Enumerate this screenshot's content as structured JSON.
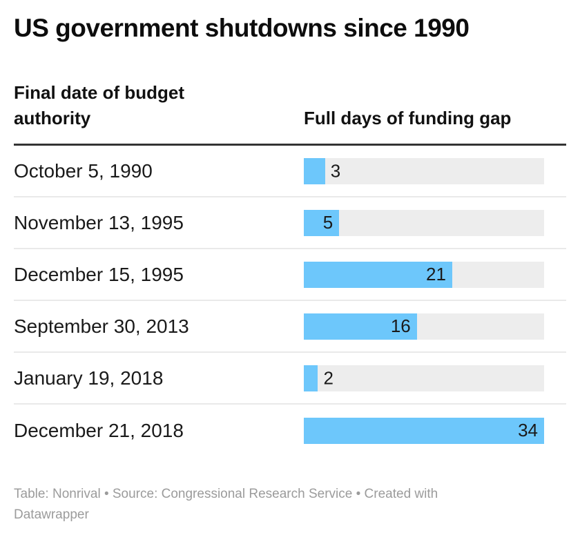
{
  "title": "US government shutdowns since 1990",
  "table": {
    "col1_header": "Final date of budget authority",
    "col2_header": "Full days of funding gap",
    "bar_max": 34,
    "rows": [
      {
        "date": "October 5, 1990",
        "days": 3
      },
      {
        "date": "November 13, 1995",
        "days": 5
      },
      {
        "date": "December 15, 1995",
        "days": 21
      },
      {
        "date": "September 30, 2013",
        "days": 16
      },
      {
        "date": "January 19, 2018",
        "days": 2
      },
      {
        "date": "December 21, 2018",
        "days": 34
      }
    ]
  },
  "footer": "Table: Nonrival • Source: Congressional Research Service • Created with Datawrapper",
  "colors": {
    "bar": "#6dc7fb",
    "track": "#ededed",
    "header_rule": "#333333",
    "row_divider": "#e9e9e9",
    "text": "#1a1a1a",
    "footer_text": "#9b9b9b"
  },
  "chart_data": {
    "type": "bar",
    "orientation": "horizontal",
    "title": "US government shutdowns since 1990",
    "categories": [
      "October 5, 1990",
      "November 13, 1995",
      "December 15, 1995",
      "September 30, 2013",
      "January 19, 2018",
      "December 21, 2018"
    ],
    "values": [
      3,
      5,
      21,
      16,
      2,
      34
    ],
    "xlabel": "Full days of funding gap",
    "ylabel": "Final date of budget authority",
    "xlim": [
      0,
      34
    ],
    "grid": false,
    "legend": false,
    "data_labels": true,
    "bar_color": "#6dc7fb"
  }
}
